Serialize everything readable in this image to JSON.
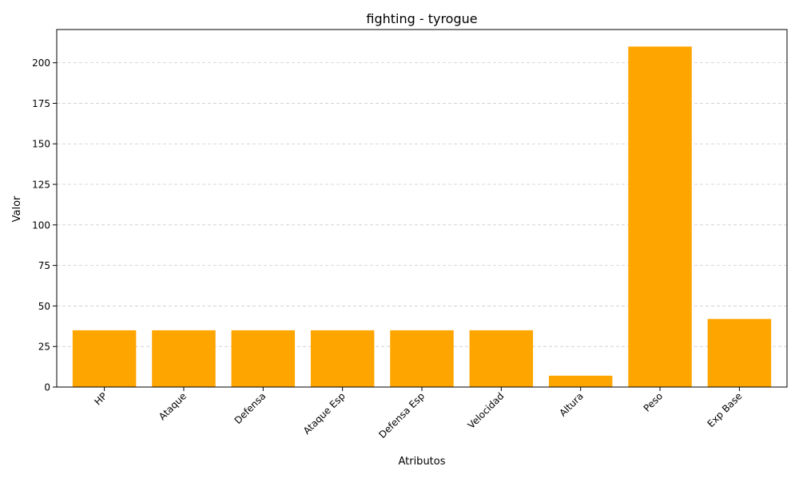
{
  "chart_data": {
    "type": "bar",
    "title": "fighting - tyrogue",
    "xlabel": "Atributos",
    "ylabel": "Valor",
    "categories": [
      "HP",
      "Ataque",
      "Defensa",
      "Ataque Esp",
      "Defensa Esp",
      "Velocidad",
      "Altura",
      "Peso",
      "Exp Base"
    ],
    "values": [
      35,
      35,
      35,
      35,
      35,
      35,
      7,
      210,
      42
    ],
    "ylim": [
      0,
      220.5
    ],
    "yticks": [
      0,
      25,
      50,
      75,
      100,
      125,
      150,
      175,
      200
    ],
    "grid": "y-dashed",
    "bar_color": "#ffa500",
    "legend": "none"
  }
}
